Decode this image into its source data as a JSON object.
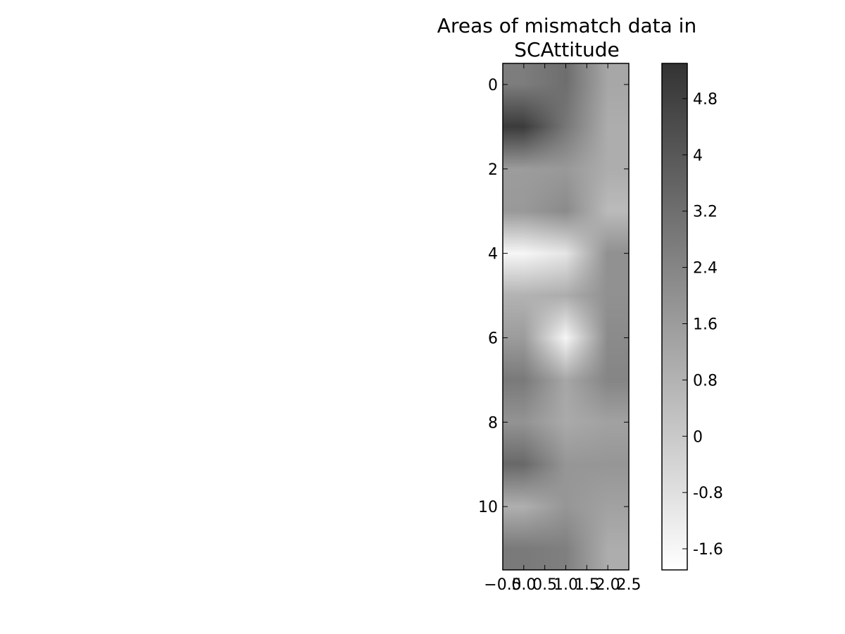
{
  "chart_data": {
    "type": "heatmap",
    "title_lines": [
      "Areas of mismatch data in",
      "SCAttitude"
    ],
    "interpolation": "bilinear",
    "colormap": "gray_r",
    "rows": 12,
    "cols": 3,
    "x_ticks": [
      "−0.5",
      "0.0",
      "0.5",
      "1.0",
      "1.5",
      "2.0",
      "2.5"
    ],
    "x_tick_values": [
      -0.5,
      0.0,
      0.5,
      1.0,
      1.5,
      2.0,
      2.5
    ],
    "xlim": [
      -0.5,
      2.5
    ],
    "y_ticks": [
      "0",
      "2",
      "4",
      "6",
      "8",
      "10"
    ],
    "y_tick_values": [
      0,
      2,
      4,
      6,
      8,
      10
    ],
    "ylim": [
      11.5,
      -0.5
    ],
    "values": [
      [
        2.7,
        3.2,
        1.2
      ],
      [
        5.0,
        2.9,
        1.0
      ],
      [
        1.6,
        1.7,
        1.0
      ],
      [
        1.7,
        2.2,
        0.5
      ],
      [
        -1.6,
        -1.0,
        2.0
      ],
      [
        0.8,
        1.0,
        2.0
      ],
      [
        1.6,
        -1.6,
        2.2
      ],
      [
        2.8,
        1.2,
        2.4
      ],
      [
        1.9,
        1.1,
        1.4
      ],
      [
        3.4,
        1.8,
        1.8
      ],
      [
        0.9,
        1.8,
        1.4
      ],
      [
        2.8,
        2.6,
        1.0
      ]
    ],
    "vmin": -1.9,
    "vmax": 5.3,
    "colorbar_ticks": [
      "4.8",
      "4",
      "3.2",
      "2.4",
      "1.6",
      "0.8",
      "0",
      "-0.8",
      "-1.6"
    ],
    "colorbar_tick_values": [
      4.8,
      4.0,
      3.2,
      2.4,
      1.6,
      0.8,
      0.0,
      -0.8,
      -1.6
    ]
  }
}
